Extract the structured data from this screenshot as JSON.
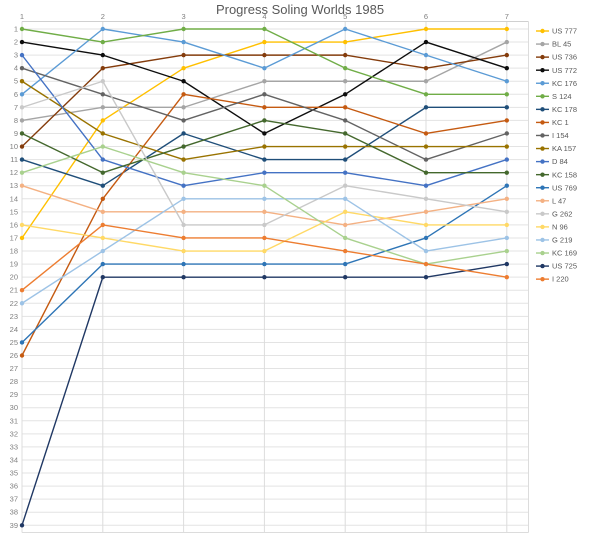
{
  "title": "Progress Soling Worlds 1985",
  "chart_data": {
    "type": "line",
    "title": "Progress Soling Worlds 1985",
    "xlabel": "",
    "ylabel": "",
    "x": [
      1,
      2,
      3,
      4,
      5,
      6,
      7
    ],
    "x_axis": {
      "position": "top",
      "ticks": [
        "1",
        "2",
        "3",
        "4",
        "5",
        "6",
        "7"
      ]
    },
    "y_axis": {
      "min": 1,
      "max": 39,
      "inverted": true,
      "tick_step": 1
    },
    "grid": true,
    "legend_position": "right",
    "marker": "circle",
    "series": [
      {
        "name": "US 777",
        "color": "#FFC000",
        "values": [
          17,
          8,
          4,
          2,
          2,
          1,
          1
        ]
      },
      {
        "name": "BL 45",
        "color": "#A5A5A5",
        "values": [
          8,
          7,
          7,
          5,
          5,
          5,
          2
        ]
      },
      {
        "name": "US 736",
        "color": "#843C0C",
        "values": [
          10,
          4,
          3,
          3,
          3,
          4,
          3
        ]
      },
      {
        "name": "US 772",
        "color": "#0D0D0D",
        "values": [
          2,
          3,
          5,
          9,
          6,
          2,
          4
        ]
      },
      {
        "name": "KC 176",
        "color": "#5B9BD5",
        "values": [
          6,
          1,
          2,
          4,
          1,
          3,
          5
        ]
      },
      {
        "name": "S 124",
        "color": "#70AD47",
        "values": [
          1,
          2,
          1,
          1,
          4,
          6,
          6
        ]
      },
      {
        "name": "KC 178",
        "color": "#1F4E79",
        "values": [
          11,
          13,
          9,
          11,
          11,
          7,
          7
        ]
      },
      {
        "name": "KC 1",
        "color": "#C55A11",
        "values": [
          26,
          14,
          6,
          7,
          7,
          9,
          8
        ]
      },
      {
        "name": "I 154",
        "color": "#636363",
        "values": [
          4,
          6,
          8,
          6,
          8,
          11,
          9
        ]
      },
      {
        "name": "KA 157",
        "color": "#997300",
        "values": [
          5,
          9,
          11,
          10,
          10,
          10,
          10
        ]
      },
      {
        "name": "D 84",
        "color": "#4472C4",
        "values": [
          3,
          11,
          13,
          12,
          12,
          13,
          11
        ]
      },
      {
        "name": "KC 158",
        "color": "#44682D",
        "values": [
          9,
          12,
          10,
          8,
          9,
          12,
          12
        ]
      },
      {
        "name": "US 769",
        "color": "#2E75B6",
        "values": [
          25,
          19,
          19,
          19,
          19,
          17,
          13
        ]
      },
      {
        "name": "L 47",
        "color": "#F4B183",
        "values": [
          13,
          15,
          15,
          15,
          16,
          15,
          14
        ]
      },
      {
        "name": "G 262",
        "color": "#C9C9C9",
        "values": [
          7,
          5,
          16,
          16,
          13,
          14,
          15
        ]
      },
      {
        "name": "N 96",
        "color": "#FFD966",
        "values": [
          16,
          17,
          18,
          18,
          15,
          16,
          16
        ]
      },
      {
        "name": "G 219",
        "color": "#9DC3E6",
        "values": [
          22,
          18,
          14,
          14,
          14,
          18,
          17
        ]
      },
      {
        "name": "KC 169",
        "color": "#A9D18E",
        "values": [
          12,
          10,
          12,
          13,
          17,
          19,
          18
        ]
      },
      {
        "name": "US 725",
        "color": "#203864",
        "values": [
          39,
          20,
          20,
          20,
          20,
          20,
          19
        ]
      },
      {
        "name": "I 220",
        "color": "#ED7D31",
        "values": [
          21,
          16,
          17,
          17,
          18,
          19,
          20
        ]
      }
    ]
  }
}
